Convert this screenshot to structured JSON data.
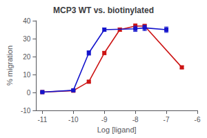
{
  "chart_data": {
    "type": "line",
    "title": "MCP3 WT vs. biotinylated",
    "xlabel": "Log [ligand]",
    "ylabel": "% migration",
    "xlim": [
      -11.2,
      -6
    ],
    "ylim": [
      -10,
      40
    ],
    "xticks": [
      -11,
      -10,
      -9,
      -8,
      -7,
      -6
    ],
    "yticks": [
      -10,
      0,
      10,
      20,
      30,
      40
    ],
    "grid": false,
    "series": [
      {
        "color": "#1414cc",
        "marker": "square",
        "x": [
          -11,
          -10,
          -9.5,
          -9,
          -8,
          -7.7,
          -7
        ],
        "values": [
          0.2,
          1.2,
          22,
          35,
          35.5,
          36,
          35
        ],
        "error": [
          0.3,
          0.4,
          1.2,
          1.0,
          1.5,
          1.5,
          1.5
        ]
      },
      {
        "color": "#cc1414",
        "marker": "square",
        "x": [
          -11,
          -10,
          -9.5,
          -9,
          -8.5,
          -8,
          -7.7,
          -6.5
        ],
        "values": [
          0.2,
          1.0,
          6,
          22,
          35,
          37,
          37,
          14
        ],
        "error": [
          0.2,
          0.3,
          0.5,
          0.8,
          1.0,
          1.2,
          1.0,
          0.8
        ]
      }
    ]
  }
}
